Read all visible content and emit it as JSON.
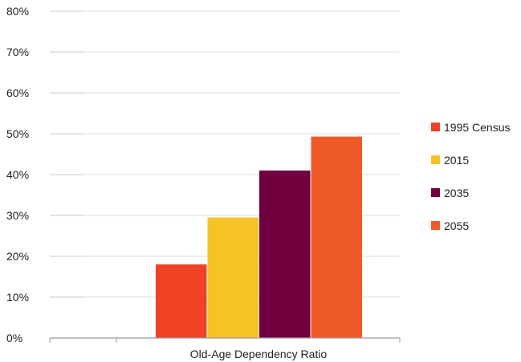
{
  "chart_data": {
    "type": "bar",
    "categories": [
      "Old-Age Dependency Ratio"
    ],
    "series": [
      {
        "name": "1995 Census",
        "values": [
          18
        ],
        "color": "#f04124"
      },
      {
        "name": "2015",
        "values": [
          29.5
        ],
        "color": "#f5c325"
      },
      {
        "name": "2035",
        "values": [
          41
        ],
        "color": "#700040"
      },
      {
        "name": "2055",
        "values": [
          49.3
        ],
        "color": "#f05a28"
      }
    ],
    "yticks": [
      "0%",
      "10%",
      "20%",
      "30%",
      "40%",
      "50%",
      "60%",
      "70%",
      "80%"
    ],
    "ylim": [
      0,
      80
    ],
    "grid": true,
    "legend_position": "right"
  }
}
